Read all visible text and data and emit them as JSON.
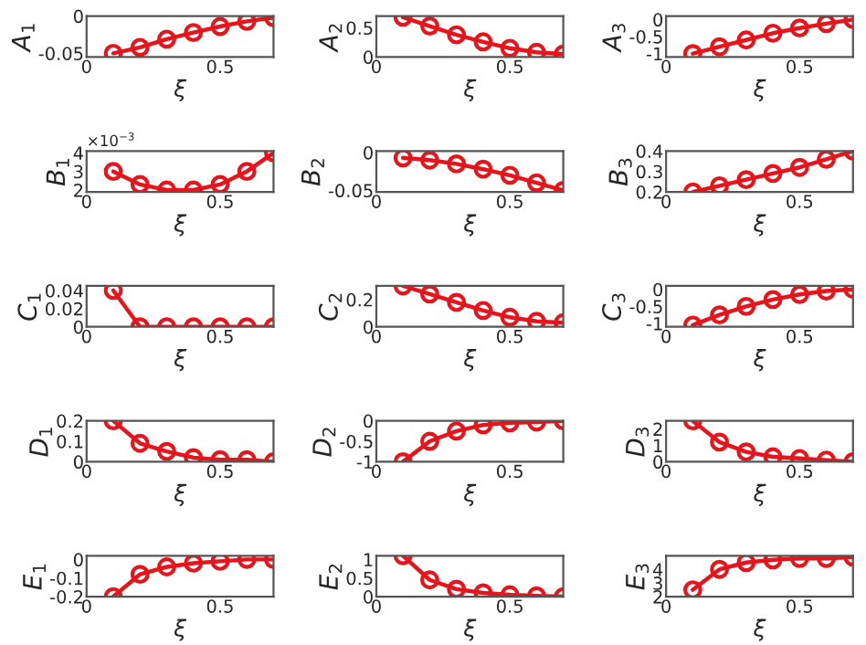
{
  "chart_data": [
    {
      "type": "line",
      "xlabel": "ξ",
      "ylabel": "A$_{1}$",
      "x": [
        0.1,
        0.2,
        0.3,
        0.4,
        0.5,
        0.6,
        0.7
      ],
      "values": [
        -0.05,
        -0.042,
        -0.031,
        -0.022,
        -0.014,
        -0.007,
        -0.002
      ],
      "color": "#e8141b",
      "marker": "circle",
      "xlim": [
        0,
        0.7
      ],
      "xticks": [
        0,
        0.5
      ],
      "ylim": [
        -0.055,
        0
      ],
      "yticks": [
        -0.05,
        0
      ]
    },
    {
      "type": "line",
      "xlabel": "ξ",
      "ylabel": "A$_{2}$",
      "x": [
        0.1,
        0.2,
        0.3,
        0.4,
        0.5,
        0.6,
        0.7
      ],
      "values": [
        0.68,
        0.53,
        0.38,
        0.26,
        0.15,
        0.08,
        0.05
      ],
      "color": "#e8141b",
      "marker": "circle",
      "xlim": [
        0,
        0.7
      ],
      "xticks": [
        0,
        0.5
      ],
      "ylim": [
        0,
        0.7
      ],
      "yticks": [
        0,
        0.5
      ]
    },
    {
      "type": "line",
      "xlabel": "ξ",
      "ylabel": "A$_{3}$",
      "x": [
        0.1,
        0.2,
        0.3,
        0.4,
        0.5,
        0.6,
        0.7
      ],
      "values": [
        -1.0,
        -0.8,
        -0.6,
        -0.4,
        -0.25,
        -0.12,
        0.0
      ],
      "color": "#e8141b",
      "marker": "circle",
      "xlim": [
        0,
        0.7
      ],
      "xticks": [
        0,
        0.5
      ],
      "ylim": [
        -1.1,
        0.1
      ],
      "yticks": [
        -1,
        -0.5,
        0
      ]
    },
    {
      "type": "line",
      "xlabel": "ξ",
      "ylabel": "B$_{1}$",
      "annotations": [
        "×10$^{−3}$"
      ],
      "x": [
        0.1,
        0.2,
        0.3,
        0.4,
        0.5,
        0.6,
        0.7
      ],
      "values": [
        3,
        2.3,
        2,
        2,
        2.3,
        3,
        4
      ],
      "color": "#e8141b",
      "marker": "circle",
      "xlim": [
        0,
        0.7
      ],
      "xticks": [
        0,
        0.5
      ],
      "ylim": [
        1.9,
        4.1
      ],
      "yticks": [
        2,
        3,
        4
      ]
    },
    {
      "type": "line",
      "xlabel": "ξ",
      "ylabel": "B$_{2}$",
      "x": [
        0.1,
        0.2,
        0.3,
        0.4,
        0.5,
        0.6,
        0.7
      ],
      "values": [
        -0.007,
        -0.01,
        -0.015,
        -0.022,
        -0.03,
        -0.04,
        -0.05
      ],
      "color": "#e8141b",
      "marker": "circle",
      "xlim": [
        0,
        0.7
      ],
      "xticks": [
        0,
        0.5
      ],
      "ylim": [
        -0.052,
        0.002
      ],
      "yticks": [
        -0.05,
        0
      ]
    },
    {
      "type": "line",
      "xlabel": "ξ",
      "ylabel": "B$_{3}$",
      "x": [
        0.1,
        0.2,
        0.3,
        0.4,
        0.5,
        0.6,
        0.7
      ],
      "values": [
        0.2,
        0.23,
        0.26,
        0.29,
        0.32,
        0.36,
        0.4
      ],
      "color": "#e8141b",
      "marker": "circle",
      "xlim": [
        0,
        0.7
      ],
      "xticks": [
        0,
        0.5
      ],
      "ylim": [
        0.2,
        0.4
      ],
      "yticks": [
        0.2,
        0.3,
        0.4
      ]
    },
    {
      "type": "line",
      "xlabel": "ξ",
      "ylabel": "C$_{1}$",
      "x": [
        0.1,
        0.2,
        0.3,
        0.4,
        0.5,
        0.6,
        0.7
      ],
      "values": [
        0.04,
        0,
        0,
        0,
        0,
        0,
        0
      ],
      "color": "#e8141b",
      "marker": "circle",
      "xlim": [
        0,
        0.7
      ],
      "xticks": [
        0,
        0.5
      ],
      "ylim": [
        0,
        0.045
      ],
      "yticks": [
        0,
        0.02,
        0.04
      ]
    },
    {
      "type": "line",
      "xlabel": "ξ",
      "ylabel": "C$_{2}$",
      "x": [
        0.1,
        0.2,
        0.3,
        0.4,
        0.5,
        0.6,
        0.7
      ],
      "values": [
        0.3,
        0.24,
        0.18,
        0.12,
        0.07,
        0.04,
        0.03
      ],
      "color": "#e8141b",
      "marker": "circle",
      "xlim": [
        0,
        0.7
      ],
      "xticks": [
        0,
        0.5
      ],
      "ylim": [
        0,
        0.3
      ],
      "yticks": [
        0,
        0.2
      ]
    },
    {
      "type": "line",
      "xlabel": "ξ",
      "ylabel": "C$_{3}$",
      "x": [
        0.1,
        0.2,
        0.3,
        0.4,
        0.5,
        0.6,
        0.7
      ],
      "values": [
        -1.05,
        -0.75,
        -0.5,
        -0.3,
        -0.15,
        -0.05,
        0.0
      ],
      "color": "#e8141b",
      "marker": "circle",
      "xlim": [
        0,
        0.7
      ],
      "xticks": [
        0,
        0.5
      ],
      "ylim": [
        -1.1,
        0.1
      ],
      "yticks": [
        -1,
        -0.5,
        0
      ]
    },
    {
      "type": "line",
      "xlabel": "ξ",
      "ylabel": "D$_{1}$",
      "x": [
        0.1,
        0.2,
        0.3,
        0.4,
        0.5,
        0.6,
        0.7
      ],
      "values": [
        0.2,
        0.09,
        0.05,
        0.02,
        0.01,
        0.01,
        0.0
      ],
      "color": "#e8141b",
      "marker": "circle",
      "xlim": [
        0,
        0.7
      ],
      "xticks": [
        0,
        0.5
      ],
      "ylim": [
        0,
        0.2
      ],
      "yticks": [
        0,
        0.1,
        0.2
      ]
    },
    {
      "type": "line",
      "xlabel": "ξ",
      "ylabel": "D$_{2}$",
      "x": [
        0.1,
        0.2,
        0.3,
        0.4,
        0.5,
        0.6,
        0.7
      ],
      "values": [
        -1.0,
        -0.5,
        -0.25,
        -0.1,
        -0.05,
        -0.03,
        0.0
      ],
      "color": "#e8141b",
      "marker": "circle",
      "xlim": [
        0,
        0.7
      ],
      "xticks": [
        0,
        0.5
      ],
      "ylim": [
        -1,
        0
      ],
      "yticks": [
        -1,
        -0.5,
        0
      ]
    },
    {
      "type": "line",
      "xlabel": "ξ",
      "ylabel": "D$_{3}$",
      "x": [
        0.1,
        0.2,
        0.3,
        0.4,
        0.5,
        0.6,
        0.7
      ],
      "values": [
        2.5,
        1.2,
        0.6,
        0.3,
        0.2,
        0.1,
        0.0
      ],
      "color": "#e8141b",
      "marker": "circle",
      "xlim": [
        0,
        0.7
      ],
      "xticks": [
        0,
        0.5
      ],
      "ylim": [
        0,
        2.5
      ],
      "yticks": [
        0,
        1,
        2
      ]
    },
    {
      "type": "line",
      "xlabel": "ξ",
      "ylabel": "E$_{1}$",
      "x": [
        0.1,
        0.2,
        0.3,
        0.4,
        0.5,
        0.6,
        0.7
      ],
      "values": [
        -0.2,
        -0.08,
        -0.04,
        -0.02,
        -0.01,
        0,
        0
      ],
      "color": "#e8141b",
      "marker": "circle",
      "xlim": [
        0,
        0.7
      ],
      "xticks": [
        0,
        0.5
      ],
      "ylim": [
        -0.2,
        0.02
      ],
      "yticks": [
        -0.2,
        -0.1,
        0
      ]
    },
    {
      "type": "line",
      "xlabel": "ξ",
      "ylabel": "E$_{2}$",
      "x": [
        0.1,
        0.2,
        0.3,
        0.4,
        0.5,
        0.6,
        0.7
      ],
      "values": [
        1.1,
        0.45,
        0.2,
        0.1,
        0.05,
        0.02,
        0.0
      ],
      "color": "#e8141b",
      "marker": "circle",
      "xlim": [
        0,
        0.7
      ],
      "xticks": [
        0,
        0.5
      ],
      "ylim": [
        0,
        1.1
      ],
      "yticks": [
        0,
        0.5,
        1
      ]
    },
    {
      "type": "line",
      "xlabel": "ξ",
      "ylabel": "E$_{3}$",
      "x": [
        0.1,
        0.2,
        0.3,
        0.4,
        0.5,
        0.6,
        0.7
      ],
      "values": [
        2.5,
        4.0,
        4.5,
        4.7,
        4.8,
        4.8,
        4.9
      ],
      "color": "#e8141b",
      "marker": "circle",
      "xlim": [
        0,
        0.7
      ],
      "xticks": [
        0,
        0.5
      ],
      "ylim": [
        2,
        5
      ],
      "yticks": [
        2,
        3,
        4
      ]
    }
  ]
}
